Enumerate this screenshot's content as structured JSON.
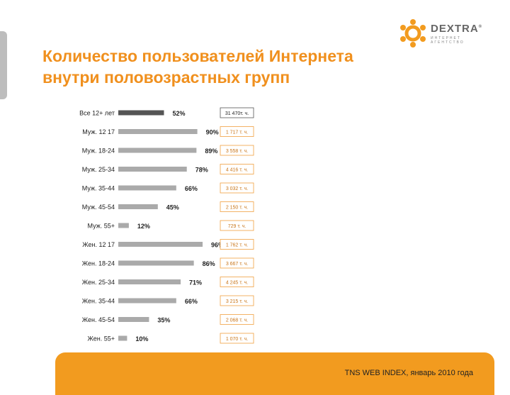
{
  "title": {
    "line1": "Количество пользователей Интернета",
    "line2": "внутри половозрастных групп"
  },
  "logo": {
    "name": "DEXTRA",
    "reg": "®",
    "sub": "ИНТЕРНЕТ АГЕНТСТВО"
  },
  "footer": {
    "source": "TNS WEB INDEX,  январь 2010 года"
  },
  "colors": {
    "accent": "#f0901e",
    "bar": "#aaaaaa",
    "bar_dark": "#555555",
    "box_border": "#f0a040"
  },
  "chart_data": {
    "type": "bar",
    "orientation": "horizontal",
    "categories": [
      "Все 12+ лет",
      "Муж. 12 17",
      "Муж. 18-24",
      "Муж. 25-34",
      "Муж. 35-44",
      "Муж. 45-54",
      "Муж. 55+",
      "Жен. 12 17",
      "Жен. 18-24",
      "Жен. 25-34",
      "Жен. 35-44",
      "Жен. 45-54",
      "Жен. 55+"
    ],
    "values": [
      52,
      90,
      89,
      78,
      66,
      45,
      12,
      96,
      86,
      71,
      66,
      35,
      10
    ],
    "value_labels": [
      "52%",
      "90%",
      "89%",
      "78%",
      "66%",
      "45%",
      "12%",
      "96%",
      "86%",
      "71%",
      "66%",
      "35%",
      "10%"
    ],
    "users": [
      "31 470т. ч.",
      "1 717 т. ч.",
      "3 558 т. ч.",
      "4 416 т. ч.",
      "3 032 т. ч.",
      "2 150 т. ч.",
      "729 т. ч.",
      "1 762 т. ч.",
      "3 667 т. ч.",
      "4 245 т. ч.",
      "3 215 т. ч.",
      "2 068 т. ч.",
      "1 070 т. ч."
    ],
    "xlim": [
      0,
      100
    ],
    "grid": false,
    "highlight_index": 0
  }
}
